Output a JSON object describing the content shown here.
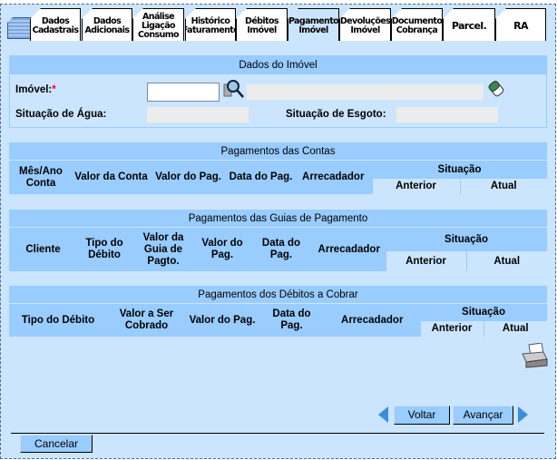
{
  "tabs": [
    {
      "label": "Dados Cadastrais"
    },
    {
      "label": "Dados Adicionais"
    },
    {
      "label": "Análise Ligação Consumo"
    },
    {
      "label": "Histórico Faturamento"
    },
    {
      "label": "Débitos Imóvel"
    },
    {
      "label": "Pagamento Imóvel",
      "active": true
    },
    {
      "label": "Devoluções Imóvel"
    },
    {
      "label": "Documento Cobrança"
    },
    {
      "label": "Parcel."
    },
    {
      "label": "RA"
    }
  ],
  "dados_imovel": {
    "title": "Dados do Imóvel",
    "imovel_label": "Imóvel:",
    "required_mark": "*",
    "imovel_value": "",
    "imovel_desc": "",
    "agua_label": "Situação de Água:",
    "agua_value": "",
    "esgoto_label": "Situação de Esgoto:",
    "esgoto_value": ""
  },
  "contas": {
    "title": "Pagamentos das Contas",
    "columns": [
      "Mês/Ano Conta",
      "Valor da Conta",
      "Valor do Pag.",
      "Data do Pag.",
      "Arrecadador",
      "Situação"
    ],
    "sub": [
      "Anterior",
      "Atual"
    ]
  },
  "guias": {
    "title": "Pagamentos das Guias de Pagamento",
    "columns": [
      "Cliente",
      "Tipo do Débito",
      "Valor da Guia de Pagto.",
      "Valor do Pag.",
      "Data do Pag.",
      "Arrecadador",
      "Situação"
    ],
    "sub": [
      "Anterior",
      "Atual"
    ]
  },
  "debitos": {
    "title": "Pagamentos dos Débitos a Cobrar",
    "columns": [
      "Tipo do Débito",
      "Valor a Ser Cobrado",
      "Valor do Pag.",
      "Data do Pag.",
      "Arrecadador",
      "Situação"
    ],
    "sub": [
      "Anterior",
      "Atual"
    ]
  },
  "buttons": {
    "voltar": "Voltar",
    "avancar": "Avançar",
    "cancelar": "Cancelar"
  },
  "colors": {
    "header": "#99ccff",
    "background": "#cbe5fe",
    "required": "#ff0000"
  }
}
